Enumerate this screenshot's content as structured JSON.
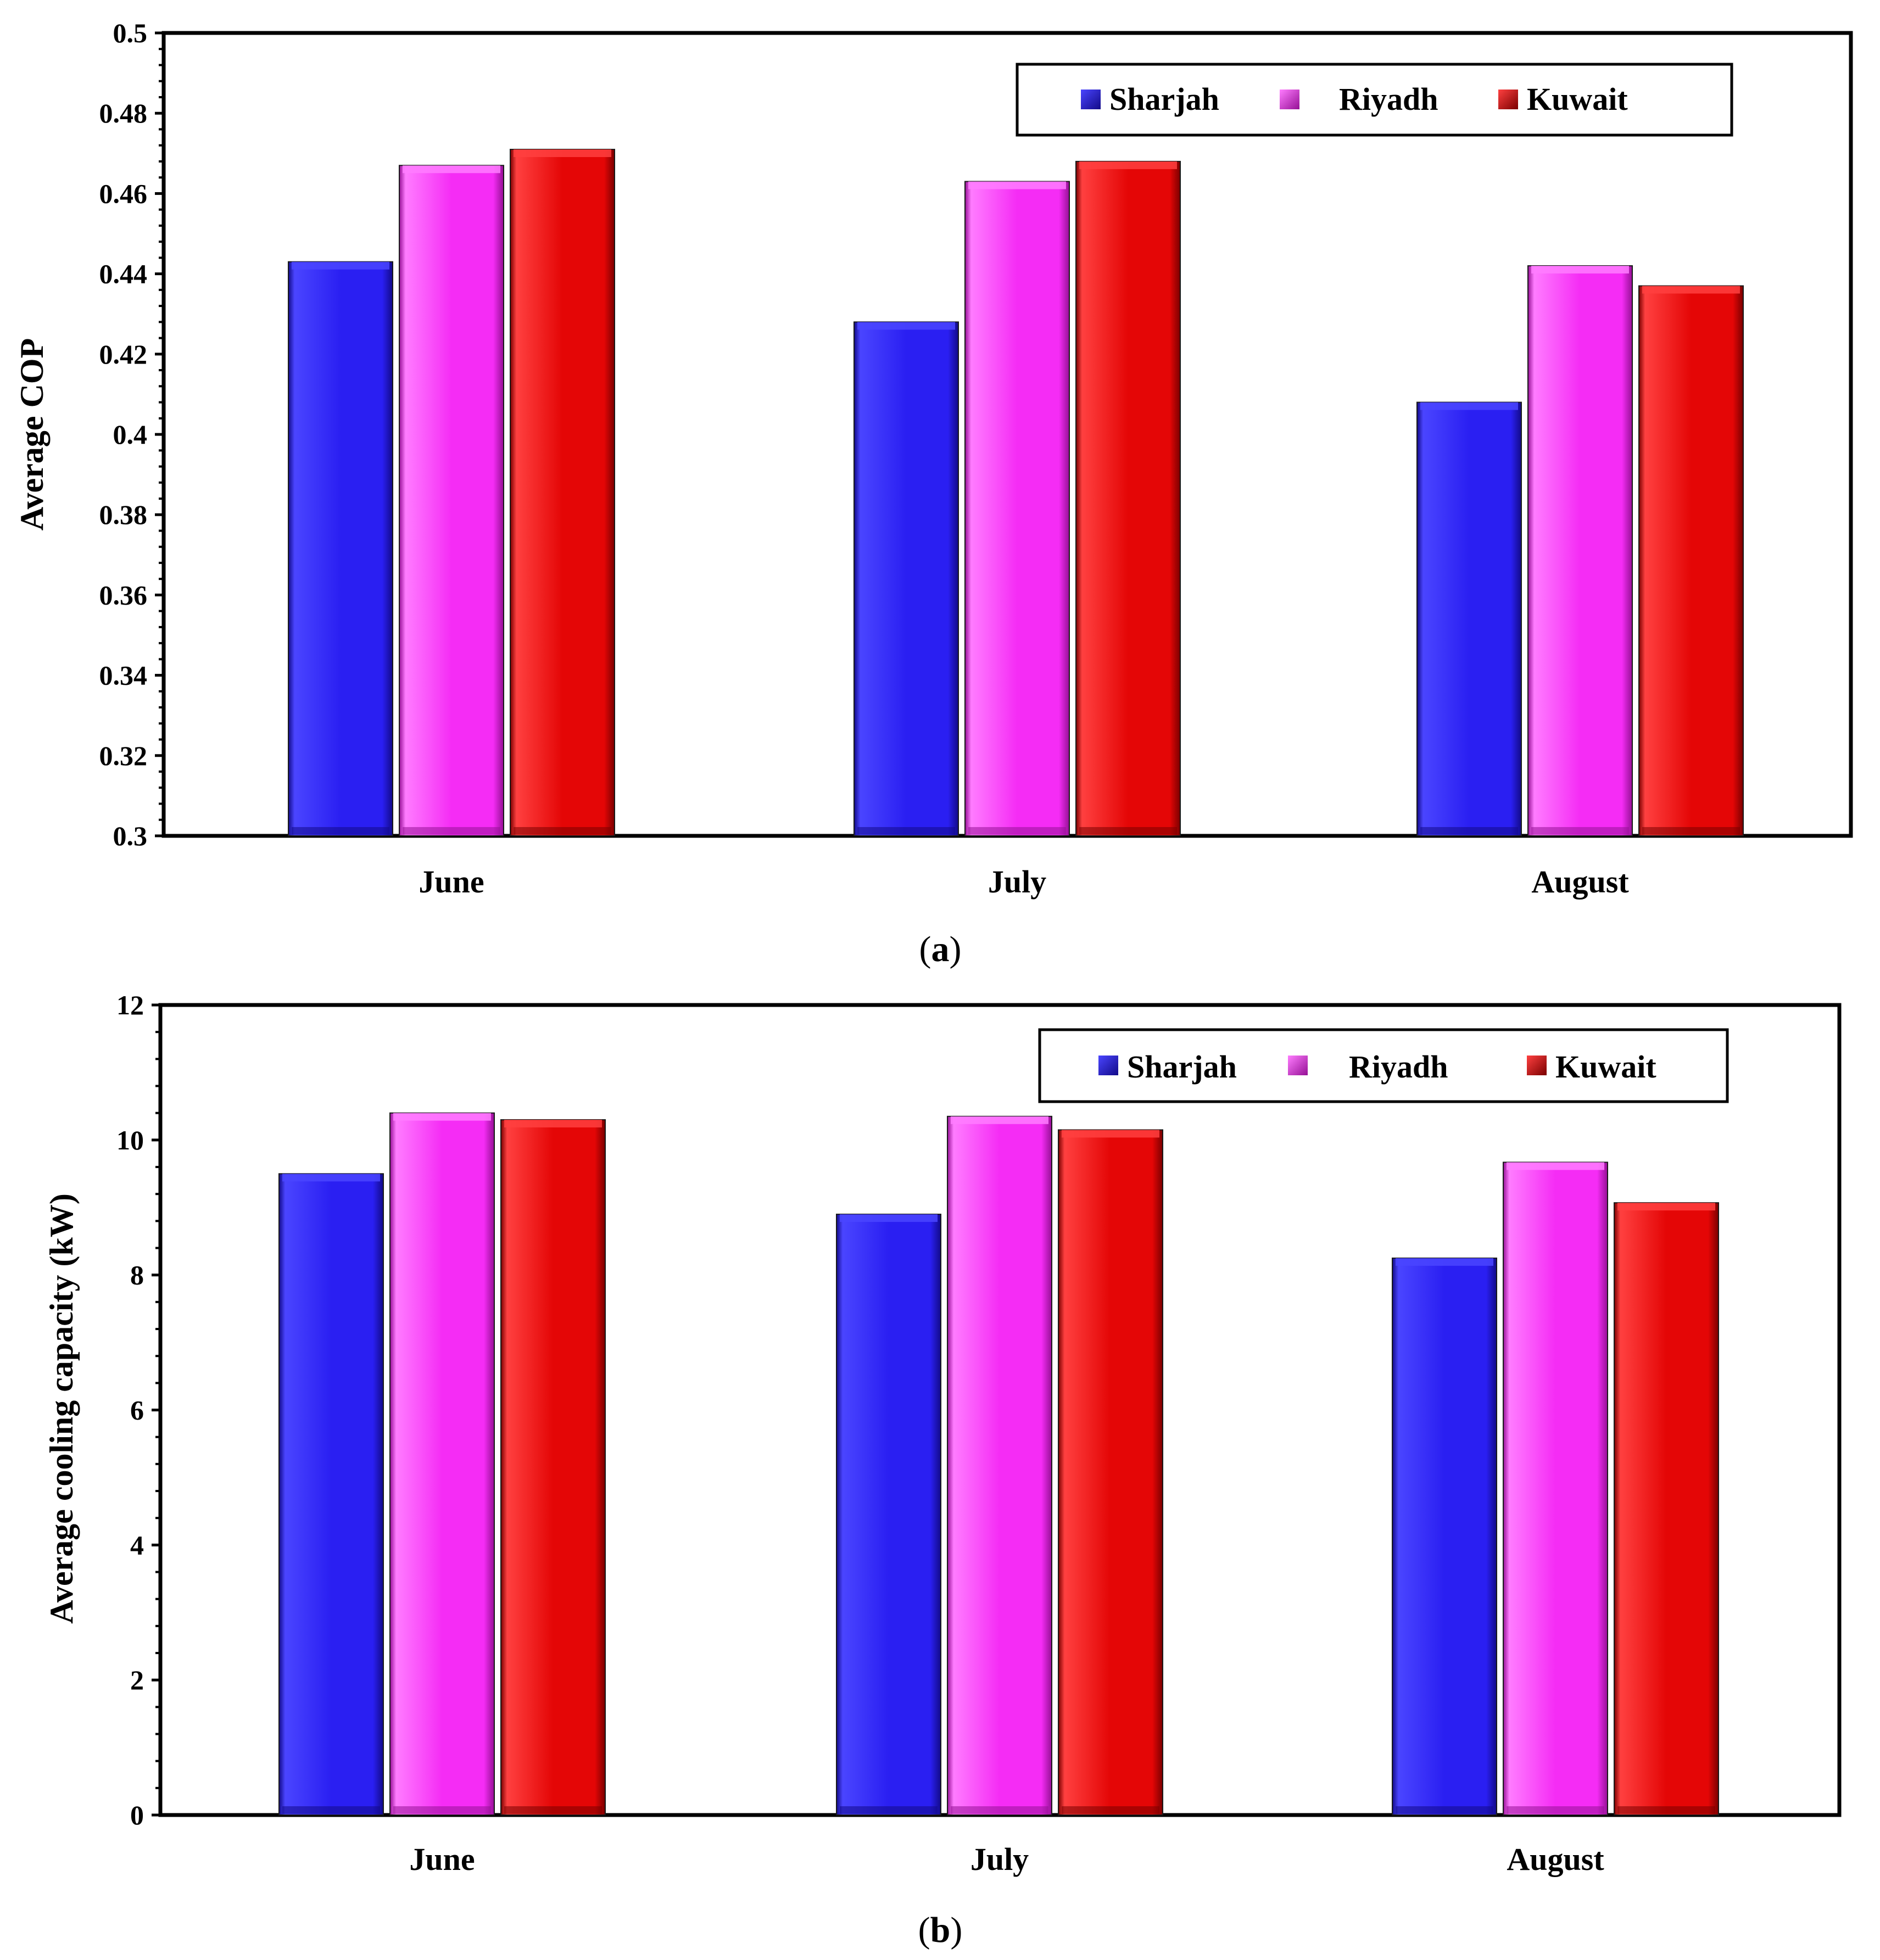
{
  "series_colors": {
    "Sharjah": {
      "light": "#4a45ff",
      "base": "#2a1ff2",
      "dark": "#120a88"
    },
    "Riyadh": {
      "light": "#ff7cff",
      "base": "#f52cf5",
      "dark": "#951095"
    },
    "Kuwait": {
      "light": "#ff4040",
      "base": "#e40606",
      "dark": "#7a0000"
    }
  },
  "chart_data": [
    {
      "id": "a",
      "type": "bar",
      "caption_letter": "a",
      "ylabel": "Average COP",
      "xlabel": "",
      "categories": [
        "June",
        "July",
        "August"
      ],
      "series": [
        {
          "name": "Sharjah",
          "values": [
            0.443,
            0.428,
            0.408
          ]
        },
        {
          "name": "Riyadh",
          "values": [
            0.467,
            0.463,
            0.442
          ]
        },
        {
          "name": "Kuwait",
          "values": [
            0.471,
            0.468,
            0.437
          ]
        }
      ],
      "ylim": [
        0.3,
        0.5
      ],
      "yticks": [
        0.3,
        0.32,
        0.34,
        0.36,
        0.38,
        0.4,
        0.42,
        0.44,
        0.46,
        0.48,
        0.5
      ],
      "ytick_labels": [
        "0.3",
        "0.32",
        "0.34",
        "0.36",
        "0.38",
        "0.4",
        "0.42",
        "0.44",
        "0.46",
        "0.48",
        "0.5"
      ],
      "legend": [
        "Sharjah",
        "Riyadh",
        "Kuwait"
      ],
      "legend_position": "top-right",
      "grid": false
    },
    {
      "id": "b",
      "type": "bar",
      "caption_letter": "b",
      "ylabel": "Average cooling capacity (kW)",
      "xlabel": "",
      "categories": [
        "June",
        "July",
        "August"
      ],
      "series": [
        {
          "name": "Sharjah",
          "values": [
            9.5,
            8.9,
            8.25
          ]
        },
        {
          "name": "Riyadh",
          "values": [
            10.4,
            10.35,
            9.67
          ]
        },
        {
          "name": "Kuwait",
          "values": [
            10.3,
            10.15,
            9.07
          ]
        }
      ],
      "ylim": [
        0,
        12
      ],
      "yticks": [
        0,
        2,
        4,
        6,
        8,
        10,
        12
      ],
      "ytick_labels": [
        "0",
        "2",
        "4",
        "6",
        "8",
        "10",
        "12"
      ],
      "legend": [
        "Sharjah",
        "Riyadh",
        "Kuwait"
      ],
      "legend_position": "top-right",
      "grid": false
    }
  ]
}
